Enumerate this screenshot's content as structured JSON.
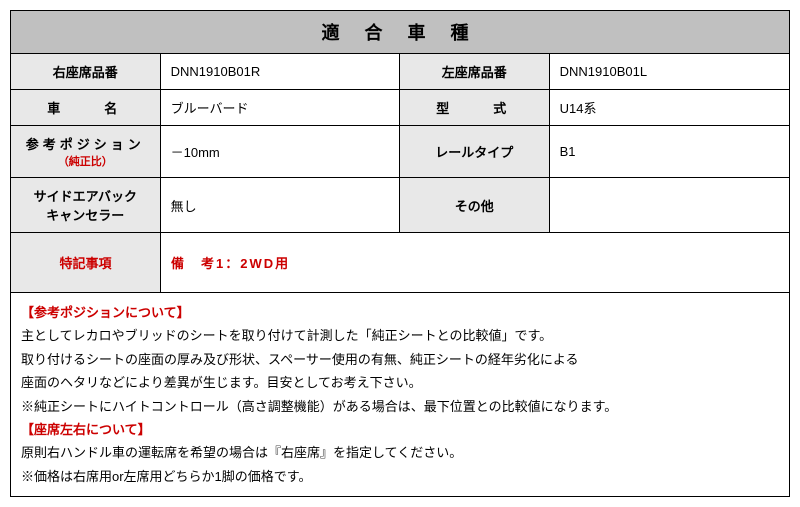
{
  "title": "適 合 車 種",
  "rows": [
    {
      "l1": "右座席品番",
      "v1": "DNN1910B01R",
      "l2": "左座席品番",
      "v2": "DNN1910B01L"
    },
    {
      "l1": "車　　名",
      "v1": "ブルーバード",
      "l2": "型　　式",
      "v2": "U14系"
    },
    {
      "l1": "参考ポジション",
      "sub1": "（純正比）",
      "v1": "－10mm",
      "l2": "レールタイプ",
      "v2": "B1"
    },
    {
      "l1": "サイドエアバック",
      "l1b": "キャンセラー",
      "v1": "無し",
      "l2": "その他",
      "v2": ""
    }
  ],
  "notes": {
    "label": "特記事項",
    "content": "備　考1：2WD用"
  },
  "footer": {
    "h1": "【参考ポジションについて】",
    "p1": "主としてレカロやブリッドのシートを取り付けて計測した「純正シートとの比較値」です。",
    "p2": "取り付けるシートの座面の厚み及び形状、スペーサー使用の有無、純正シートの経年劣化による",
    "p3": "座面のヘタリなどにより差異が生じます。目安としてお考え下さい。",
    "p4": "※純正シートにハイトコントロール（高さ調整機能）がある場合は、最下位置との比較値になります。",
    "h2": "【座席左右について】",
    "p5": "原則右ハンドル車の運転席を希望の場合は『右座席』を指定してください。",
    "p6": "※価格は右席用or左席用どちらか1脚の価格です。"
  }
}
